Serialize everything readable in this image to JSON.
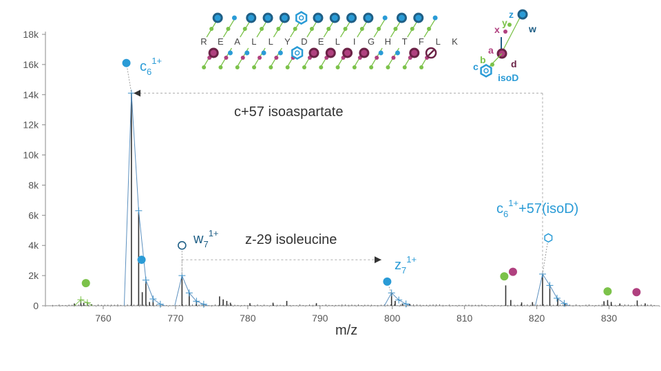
{
  "chart_data": {
    "type": "line",
    "xlabel": "m/z",
    "ylabel": "",
    "xlim": [
      752,
      837
    ],
    "ylim": [
      0,
      18000
    ],
    "x_ticks": [
      760,
      770,
      780,
      790,
      800,
      810,
      820,
      830
    ],
    "y_ticks": [
      0,
      2000,
      4000,
      6000,
      8000,
      10000,
      12000,
      14000,
      16000,
      18000
    ],
    "y_tick_labels": [
      "0",
      "2k",
      "4k",
      "6k",
      "8k",
      "10k",
      "12k",
      "14k",
      "16k",
      "18k"
    ],
    "colors": {
      "blue": "#2a9bd6",
      "green": "#7cc24a",
      "magenta": "#b0407f",
      "navy": "#1f5f86",
      "stick": "#333333",
      "fit": "#4a84b8"
    },
    "spectrum": {
      "sticks": [
        [
          756.0,
          150
        ],
        [
          756.9,
          350
        ],
        [
          757.3,
          200
        ],
        [
          757.8,
          250
        ],
        [
          758.4,
          100
        ],
        [
          763.9,
          14100
        ],
        [
          764.9,
          6200
        ],
        [
          765.4,
          900
        ],
        [
          765.9,
          1600
        ],
        [
          766.4,
          250
        ],
        [
          766.9,
          380
        ],
        [
          770.9,
          1950
        ],
        [
          771.9,
          850
        ],
        [
          772.9,
          300
        ],
        [
          773.9,
          120
        ],
        [
          776.1,
          620
        ],
        [
          776.6,
          420
        ],
        [
          777.1,
          320
        ],
        [
          777.6,
          200
        ],
        [
          780.3,
          170
        ],
        [
          783.5,
          200
        ],
        [
          785.4,
          320
        ],
        [
          789.5,
          170
        ],
        [
          799.9,
          800
        ],
        [
          800.4,
          320
        ],
        [
          801.4,
          150
        ],
        [
          802.4,
          120
        ],
        [
          815.7,
          1350
        ],
        [
          816.4,
          380
        ],
        [
          817.9,
          220
        ],
        [
          819.4,
          240
        ],
        [
          820.8,
          2050
        ],
        [
          821.8,
          1350
        ],
        [
          822.9,
          500
        ],
        [
          823.9,
          160
        ],
        [
          829.3,
          300
        ],
        [
          829.8,
          380
        ],
        [
          830.3,
          250
        ],
        [
          831.5,
          150
        ],
        [
          833.9,
          350
        ],
        [
          835.0,
          160
        ]
      ],
      "fit_envelopes": [
        [
          [
            762.9,
            0
          ],
          [
            763.9,
            14100
          ],
          [
            764.9,
            6300
          ],
          [
            765.9,
            1700
          ],
          [
            766.9,
            450
          ],
          [
            767.9,
            100
          ],
          [
            768.5,
            0
          ]
        ],
        [
          [
            769.9,
            0
          ],
          [
            770.9,
            2000
          ],
          [
            771.9,
            850
          ],
          [
            772.9,
            300
          ],
          [
            773.9,
            100
          ],
          [
            774.5,
            0
          ]
        ],
        [
          [
            798.9,
            0
          ],
          [
            799.9,
            850
          ],
          [
            800.9,
            380
          ],
          [
            801.9,
            120
          ],
          [
            802.5,
            0
          ]
        ],
        [
          [
            819.8,
            0
          ],
          [
            820.8,
            2100
          ],
          [
            821.8,
            1350
          ],
          [
            822.8,
            500
          ],
          [
            823.8,
            150
          ],
          [
            824.5,
            0
          ]
        ],
        [
          [
            756.0,
            0
          ],
          [
            756.9,
            400
          ],
          [
            757.8,
            200
          ],
          [
            758.5,
            0
          ]
        ]
      ]
    },
    "ion_markers": [
      {
        "x": 763.2,
        "y": 16100,
        "color": "blue",
        "shape": "circle",
        "anchor": [
          763.9,
          14100
        ]
      },
      {
        "x": 765.3,
        "y": 3050,
        "color": "blue",
        "shape": "circle"
      },
      {
        "x": 757.6,
        "y": 1500,
        "color": "green",
        "shape": "circle"
      },
      {
        "x": 770.9,
        "y": 4000,
        "color": "navy",
        "shape": "open-circle",
        "anchor": [
          770.9,
          2000
        ]
      },
      {
        "x": 799.3,
        "y": 1600,
        "color": "blue",
        "shape": "circle",
        "anchor": [
          799.9,
          800
        ]
      },
      {
        "x": 815.5,
        "y": 1950,
        "color": "green",
        "shape": "circle"
      },
      {
        "x": 816.7,
        "y": 2250,
        "color": "magenta",
        "shape": "circle"
      },
      {
        "x": 821.6,
        "y": 4500,
        "color": "blue",
        "shape": "open-hexagon",
        "anchor": [
          820.8,
          2100
        ]
      },
      {
        "x": 829.8,
        "y": 950,
        "color": "green",
        "shape": "circle"
      },
      {
        "x": 833.8,
        "y": 900,
        "color": "magenta",
        "shape": "circle"
      }
    ],
    "ion_labels": {
      "c6": {
        "base": "c",
        "sub": "6",
        "sup": "1+"
      },
      "w7": {
        "base": "w",
        "sub": "7",
        "sup": "1+"
      },
      "z7": {
        "base": "z",
        "sub": "7",
        "sup": "1+"
      },
      "c6iso": {
        "base": "c",
        "sub": "6",
        "sup": "1+",
        "suffix": "+57(isoD)"
      }
    },
    "annotations": [
      {
        "text": "c+57 isoaspartate",
        "arrow_from": 820.8,
        "arrow_to": 764.2,
        "at_y": 14100
      },
      {
        "text": "z-29 isoleucine",
        "arrow_from": 770.9,
        "arrow_to": 798.5,
        "at_y": 3050
      }
    ],
    "peptide": {
      "sequence": [
        "R",
        "E",
        "A",
        "L",
        "L",
        "Y",
        "D",
        "E",
        "L",
        "I",
        "G",
        "H",
        "T",
        "F",
        "L",
        "K"
      ],
      "highlight_index": 6,
      "top_markers": [
        {
          "after": 0,
          "kind": "navy-ring"
        },
        {
          "after": 1,
          "kind": "blue-dot"
        },
        {
          "after": 2,
          "kind": "navy-ring"
        },
        {
          "after": 3,
          "kind": "navy-ring"
        },
        {
          "after": 4,
          "kind": "navy-ring"
        },
        {
          "after": 5,
          "kind": "blue-hexagon"
        },
        {
          "after": 6,
          "kind": "navy-ring"
        },
        {
          "after": 7,
          "kind": "navy-ring"
        },
        {
          "after": 8,
          "kind": "navy-ring"
        },
        {
          "after": 9,
          "kind": "navy-ring"
        },
        {
          "after": 10,
          "kind": "blue-dot"
        },
        {
          "after": 11,
          "kind": "navy-ring"
        },
        {
          "after": 12,
          "kind": "navy-ring"
        },
        {
          "after": 13,
          "kind": "blue-dot"
        }
      ],
      "bottom_markers": [
        {
          "after": 0,
          "kind": "magenta-ring"
        },
        {
          "after": 1,
          "kind": "blue-dot"
        },
        {
          "after": 2,
          "kind": "blue-dot"
        },
        {
          "after": 3,
          "kind": "blue-dot"
        },
        {
          "after": 4,
          "kind": "blue-dot"
        },
        {
          "after": 5,
          "kind": "blue-hexagon"
        },
        {
          "after": 6,
          "kind": "magenta-ring"
        },
        {
          "after": 7,
          "kind": "magenta-ring"
        },
        {
          "after": 8,
          "kind": "magenta-ring"
        },
        {
          "after": 9,
          "kind": "magenta-ring"
        },
        {
          "after": 10,
          "kind": "blue-dot"
        },
        {
          "after": 11,
          "kind": "blue-dot"
        },
        {
          "after": 12,
          "kind": "magenta-ring"
        },
        {
          "after": 13,
          "kind": "magenta-ring-slash"
        }
      ]
    },
    "legend": {
      "top_labels": [
        "z",
        "y",
        "x"
      ],
      "top_right_label": "w",
      "bottom_labels": [
        "a",
        "b",
        "c"
      ],
      "bottom_right_label": "d",
      "residue_label": "isoD"
    }
  }
}
